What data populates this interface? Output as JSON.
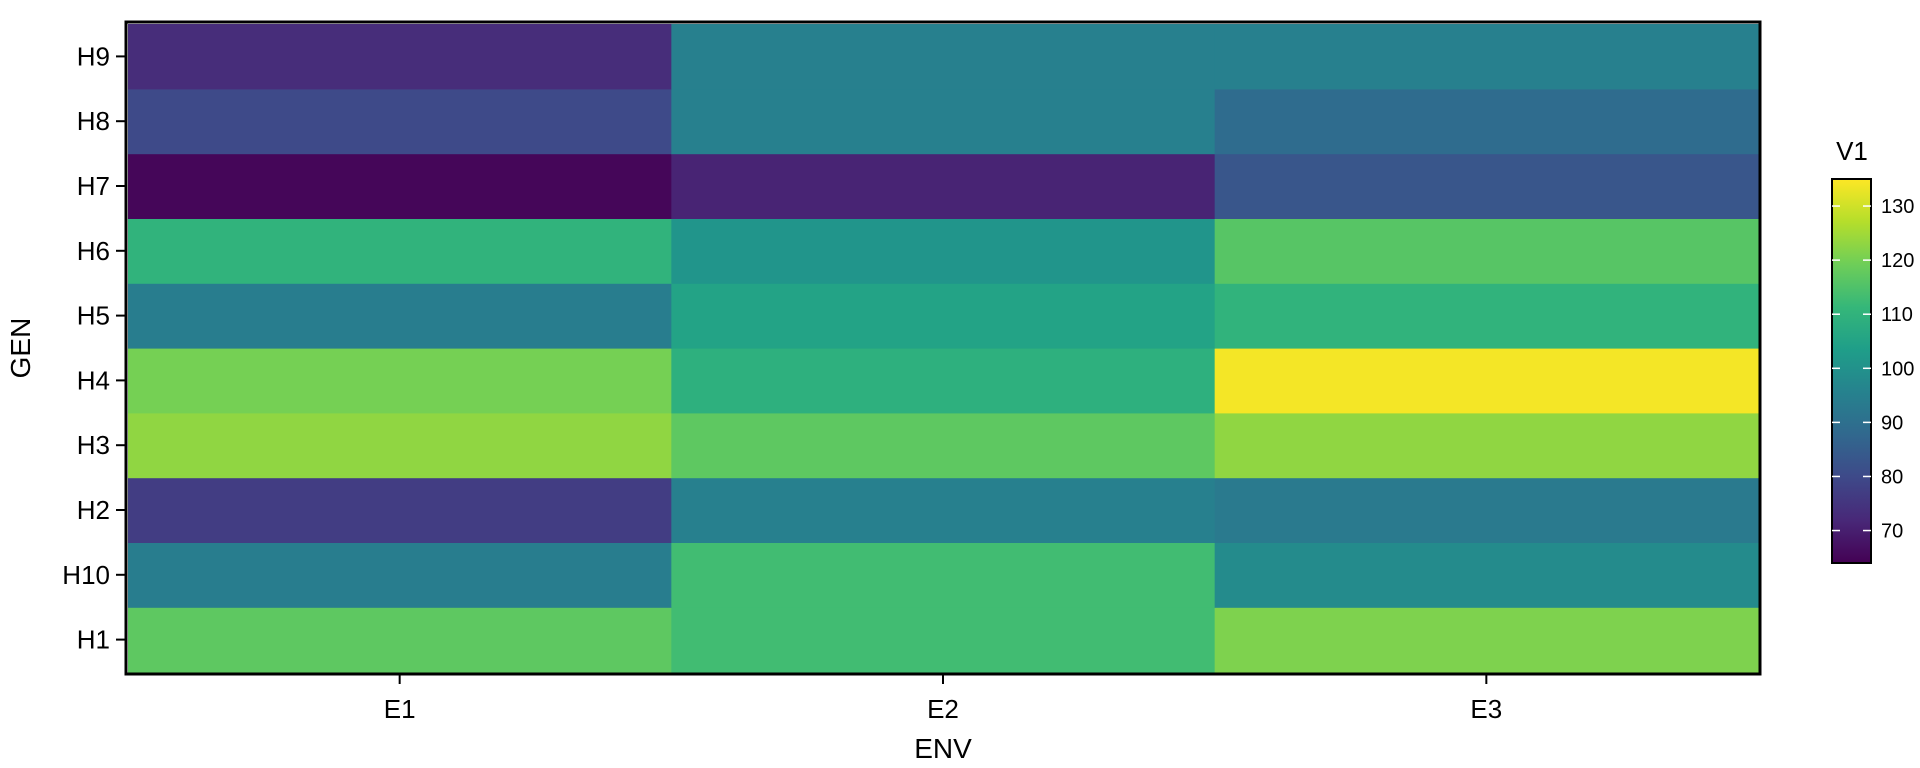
{
  "chart_data": {
    "type": "heatmap",
    "title": "",
    "xlabel": "ENV",
    "ylabel": "GEN",
    "x": [
      "E1",
      "E2",
      "E3"
    ],
    "y": [
      "H1",
      "H10",
      "H2",
      "H3",
      "H4",
      "H5",
      "H6",
      "H7",
      "H8",
      "H9"
    ],
    "values": {
      "H1": [
        117,
        113,
        121
      ],
      "H10": [
        94,
        113,
        98
      ],
      "H2": [
        77,
        95,
        93
      ],
      "H3": [
        123,
        117,
        123
      ],
      "H4": [
        120,
        109,
        134
      ],
      "H5": [
        94,
        105,
        110
      ],
      "H6": [
        110,
        101,
        116
      ],
      "H7": [
        65,
        71,
        83
      ],
      "H8": [
        80,
        95,
        89
      ],
      "H9": [
        73,
        95,
        95
      ]
    },
    "grid": false,
    "legend": {
      "title": "V1",
      "position": "right",
      "range": [
        64,
        135
      ],
      "ticks": [
        70,
        80,
        90,
        100,
        110,
        120,
        130
      ],
      "colormap": "viridis"
    }
  }
}
